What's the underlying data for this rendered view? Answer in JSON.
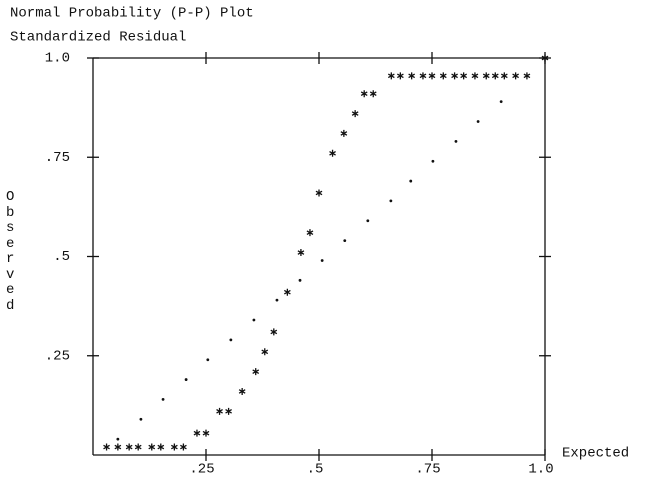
{
  "chart_data": {
    "type": "scatter",
    "title": "Normal Probability (P-P) Plot",
    "subtitle": "Standardized Residual",
    "y_label": "Observed",
    "x_label": "Expected",
    "xlim": [
      0,
      1
    ],
    "ylim": [
      0,
      1
    ],
    "xticks": [
      {
        "value": 0.25,
        "label": ".25"
      },
      {
        "value": 0.5,
        "label": ".5"
      },
      {
        "value": 0.75,
        "label": ".75"
      },
      {
        "value": 1.0,
        "label": "1.0"
      }
    ],
    "yticks": [
      {
        "value": 0.25,
        "label": ".25"
      },
      {
        "value": 0.5,
        "label": ".5"
      },
      {
        "value": 0.75,
        "label": ".75"
      },
      {
        "value": 1.0,
        "label": "1.0"
      }
    ],
    "series": [
      {
        "marker": "star",
        "color": "#111111",
        "x": [
          0.03,
          0.055,
          0.08,
          0.1,
          0.13,
          0.15,
          0.18,
          0.2,
          0.23,
          0.25,
          0.28,
          0.3,
          0.33,
          0.36,
          0.38,
          0.4,
          0.43,
          0.46,
          0.48,
          0.5,
          0.53,
          0.555,
          0.58,
          0.6,
          0.62,
          0.66,
          0.68,
          0.705,
          0.73,
          0.75,
          0.775,
          0.8,
          0.82,
          0.845,
          0.87,
          0.89,
          0.91,
          0.935,
          0.96,
          1.0
        ],
        "values": [
          0.02,
          0.02,
          0.02,
          0.02,
          0.02,
          0.02,
          0.02,
          0.02,
          0.055,
          0.055,
          0.11,
          0.11,
          0.16,
          0.21,
          0.26,
          0.31,
          0.41,
          0.51,
          0.56,
          0.66,
          0.76,
          0.81,
          0.86,
          0.91,
          0.91,
          0.955,
          0.955,
          0.955,
          0.955,
          0.955,
          0.955,
          0.955,
          0.955,
          0.955,
          0.955,
          0.955,
          0.955,
          0.955,
          0.955,
          1.0
        ]
      },
      {
        "marker": "dot",
        "color": "#111111",
        "x": [
          0.055,
          0.106,
          0.155,
          0.206,
          0.254,
          0.305,
          0.356,
          0.407,
          0.458,
          0.507,
          0.557,
          0.608,
          0.659,
          0.703,
          0.752,
          0.803,
          0.852,
          0.903
        ],
        "values": [
          0.04,
          0.09,
          0.14,
          0.19,
          0.24,
          0.29,
          0.34,
          0.39,
          0.44,
          0.49,
          0.54,
          0.59,
          0.64,
          0.69,
          0.74,
          0.79,
          0.84,
          0.89
        ]
      }
    ]
  }
}
